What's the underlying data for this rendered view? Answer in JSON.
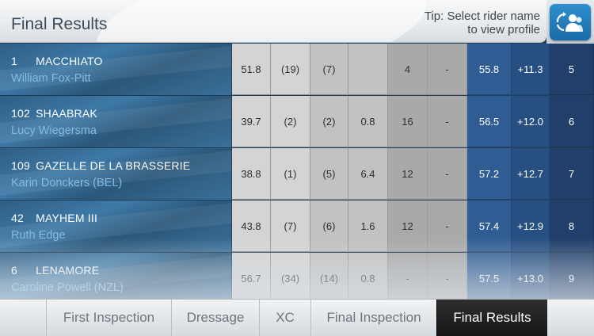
{
  "header": {
    "title": "Final Results",
    "tip_line1": "Tip: Select rider name",
    "tip_line2": "to view profile"
  },
  "profile_button": {
    "icon": "riders-refresh-icon"
  },
  "rows": [
    {
      "number": "1",
      "horse": "MACCHIATO",
      "rider": "William Fox-Pitt",
      "cols": [
        "51.8",
        "(19)",
        "(7)",
        "",
        "4",
        "-",
        "55.8",
        "+11.3",
        "5"
      ]
    },
    {
      "number": "102",
      "horse": "SHAABRAK",
      "rider": "Lucy Wiegersma",
      "cols": [
        "39.7",
        "(2)",
        "(2)",
        "0.8",
        "16",
        "-",
        "56.5",
        "+12.0",
        "6"
      ]
    },
    {
      "number": "109",
      "horse": "GAZELLE DE LA BRASSERIE",
      "rider": "Karin Donckers (BEL)",
      "cols": [
        "38.8",
        "(1)",
        "(5)",
        "6.4",
        "12",
        "-",
        "57.2",
        "+12.7",
        "7"
      ]
    },
    {
      "number": "42",
      "horse": "MAYHEM III",
      "rider": "Ruth Edge",
      "cols": [
        "43.8",
        "(7)",
        "(6)",
        "1.6",
        "12",
        "-",
        "57.4",
        "+12.9",
        "8"
      ]
    },
    {
      "number": "6",
      "horse": "LENAMORE",
      "rider": "Caroline Powell (NZL)",
      "cols": [
        "56.7",
        "(34)",
        "(14)",
        "0.8",
        "-",
        "-",
        "57.5",
        "+13.0",
        "9"
      ]
    }
  ],
  "tabs": [
    {
      "label": "First Inspection",
      "active": false
    },
    {
      "label": "Dressage",
      "active": false
    },
    {
      "label": "XC",
      "active": false
    },
    {
      "label": "Final Inspection",
      "active": false
    },
    {
      "label": "Final Results",
      "active": true
    }
  ],
  "colors": {
    "accent_blue": "#2f8fd0",
    "rider_name": "#7ab6e2",
    "active_tab": "#1e1e1e"
  }
}
